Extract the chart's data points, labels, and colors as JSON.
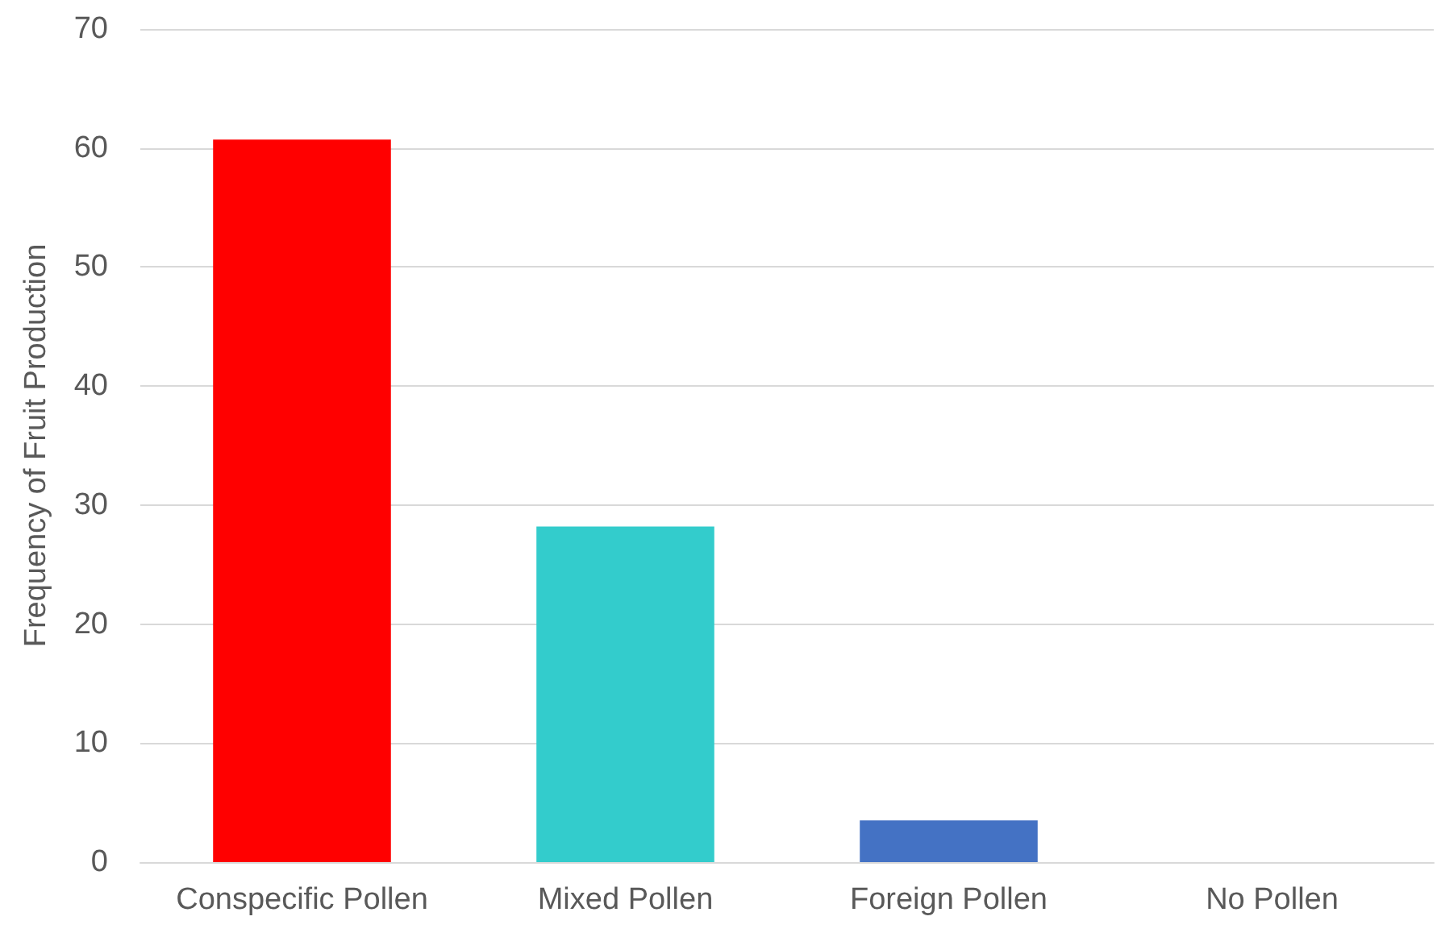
{
  "chart_data": {
    "type": "bar",
    "ylabel": "Frequency of Fruit Production",
    "categories": [
      "Conspecific Pollen",
      "Mixed Pollen",
      "Foreign Pollen",
      "No Pollen"
    ],
    "values": [
      60.7,
      28.2,
      3.5,
      0
    ],
    "colors": [
      "#ff0000",
      "#33cccc",
      "#4472c4",
      "#4472c4"
    ],
    "ylim": [
      0,
      70
    ],
    "yticks": [
      0,
      10,
      20,
      30,
      40,
      50,
      60,
      70
    ],
    "grid": "y"
  }
}
